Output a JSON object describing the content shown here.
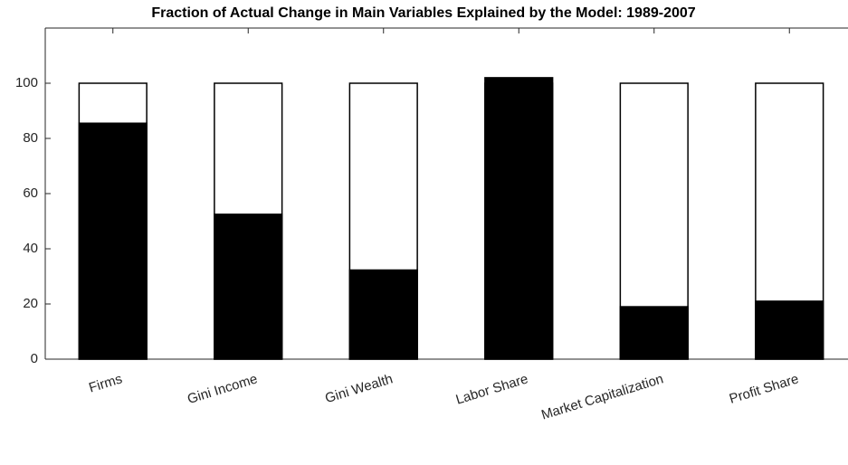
{
  "chart_data": {
    "type": "bar",
    "title": "Fraction of Actual Change in Main Variables Explained by the Model: 1989-2007",
    "categories": [
      "Firms",
      "Gini Income",
      "Gini Wealth",
      "Labor Share",
      "Market Capitalization",
      "Profit Share"
    ],
    "series": [
      {
        "color": "#ffffff",
        "values": [
          100,
          100,
          100,
          100,
          100,
          100
        ]
      },
      {
        "color": "#000000",
        "values": [
          85.5,
          52.5,
          32.3,
          102,
          19,
          21
        ]
      }
    ],
    "overlay": true,
    "ylim": [
      0,
      120
    ],
    "yticks": [
      0,
      20,
      40,
      60,
      80,
      100
    ],
    "grid": false
  }
}
